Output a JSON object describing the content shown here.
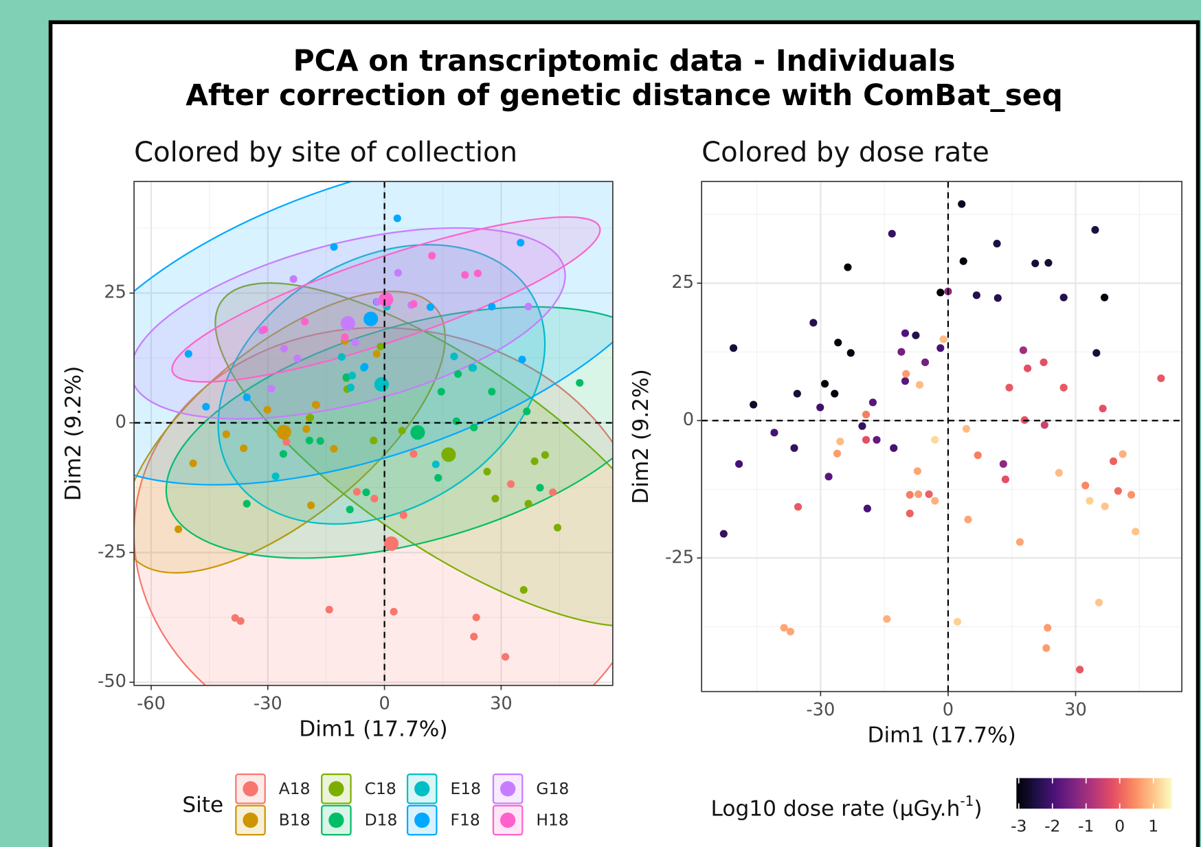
{
  "title_lines": [
    "PCA on transcriptomic data - Individuals",
    "After correction of genetic distance with ComBat_seq"
  ],
  "chart_data": [
    {
      "type": "scatter",
      "title": "Colored by site of collection",
      "xlabel": "Dim1 (17.7%)",
      "ylabel": "Dim2 (9.2%)",
      "xlim": [
        -64.4,
        58.7
      ],
      "ylim": [
        -50.6,
        46.5
      ],
      "xticks": [
        -60,
        -30,
        0,
        30
      ],
      "yticks": [
        -50,
        -25,
        0,
        25
      ],
      "grid": true,
      "hline": 0,
      "vline": 0,
      "ellipses": true,
      "legend_title": "Site",
      "series": [
        {
          "name": "A18",
          "color": "#F8766D",
          "x": [
            32.5,
            43.3,
            4.9,
            -14.2,
            2.4,
            23.6,
            23.0,
            31.1,
            -38.4,
            -37.0,
            -7.1,
            -2.6,
            7.5,
            -25.2,
            -17.5
          ],
          "y": [
            -11.8,
            -13.4,
            -17.8,
            -36.0,
            -36.4,
            -37.5,
            -41.2,
            -45.1,
            -37.6,
            -38.2,
            -13.3,
            -14.6,
            -6.0,
            -3.7,
            3.4
          ]
        },
        {
          "name": "B18",
          "color": "#CD9600",
          "x": [
            -53.0,
            -49.2,
            -40.7,
            -36.2,
            -18.9,
            -30.1,
            -20.1,
            -13.0,
            -17.7,
            -10.2,
            -2.0,
            -19.3
          ],
          "y": [
            -20.5,
            -7.8,
            -2.2,
            -4.9,
            -15.9,
            2.5,
            -1.2,
            -5.0,
            3.5,
            15.8,
            13.3,
            0.9
          ]
        },
        {
          "name": "C18",
          "color": "#7CAE00",
          "x": [
            35.8,
            44.5,
            37.0,
            28.5,
            26.4,
            4.5,
            -2.8,
            -9.8,
            -1.0,
            -19.1,
            38.6,
            41.3,
            -9.6
          ],
          "y": [
            -32.2,
            -20.2,
            -15.6,
            -14.6,
            -9.4,
            -1.5,
            -3.4,
            8.6,
            14.7,
            1.0,
            -7.4,
            -6.2,
            6.5
          ]
        },
        {
          "name": "D18",
          "color": "#00BE67",
          "x": [
            50.2,
            36.6,
            27.6,
            18.9,
            14.6,
            22.6,
            18.5,
            23.0,
            13.8,
            40.0,
            -4.7,
            -8.9,
            -35.4,
            -19.3,
            -16.5,
            -9.8,
            -26.0
          ],
          "y": [
            7.7,
            2.2,
            6.0,
            9.4,
            6.0,
            10.6,
            0.3,
            -0.9,
            -10.6,
            -12.5,
            -13.4,
            -16.7,
            -15.6,
            -3.4,
            -3.5,
            8.8,
            -6.0
          ]
        },
        {
          "name": "E18",
          "color": "#00BFC4",
          "x": [
            17.9,
            22.8,
            -5.3,
            -11.0,
            13.2,
            -28.0,
            -8.7,
            -8.3,
            0.6
          ],
          "y": [
            12.8,
            10.6,
            10.6,
            12.7,
            -8.0,
            -10.3,
            6.8,
            9.1,
            22.4
          ]
        },
        {
          "name": "F18",
          "color": "#00A9FF",
          "x": [
            3.3,
            -13.0,
            -50.4,
            -45.9,
            -35.4,
            35.0,
            27.6,
            35.4,
            11.8,
            -5.1,
            -2.0
          ],
          "y": [
            39.4,
            33.9,
            13.3,
            3.1,
            4.9,
            34.7,
            22.4,
            12.2,
            22.3,
            10.8,
            23.3
          ]
        },
        {
          "name": "G18",
          "color": "#C77CFF",
          "x": [
            -23.4,
            -31.5,
            -25.8,
            -22.4,
            -29.1,
            3.5,
            6.9,
            37.0,
            -1.8,
            -7.5
          ],
          "y": [
            27.7,
            17.8,
            14.3,
            12.4,
            6.6,
            28.9,
            22.7,
            22.4,
            23.3,
            15.5
          ]
        },
        {
          "name": "H18",
          "color": "#FF61CC",
          "x": [
            12.2,
            20.7,
            24.0,
            7.5,
            -10.2,
            -30.9,
            -20.5
          ],
          "y": [
            32.2,
            28.5,
            28.8,
            22.9,
            16.5,
            18.0,
            19.5
          ]
        }
      ]
    },
    {
      "type": "scatter",
      "title": "Colored by dose rate",
      "xlabel": "Dim1 (17.7%)",
      "ylabel": "Dim2 (9.2%)",
      "xlim": [
        -58,
        55
      ],
      "ylim": [
        -49.3,
        43.5
      ],
      "xticks": [
        -30,
        0,
        30
      ],
      "yticks": [
        -25,
        0,
        25
      ],
      "grid": true,
      "hline": 0,
      "vline": 0,
      "x": [
        3.2,
        34.6,
        11.5,
        -13.2,
        -23.6,
        3.6,
        20.5,
        23.6,
        -1.8,
        0,
        6.7,
        11.7,
        27.2,
        36.8,
        -31.7,
        -25.9,
        -22.9,
        -50.5,
        -10.1,
        -7.6,
        -1.8,
        -1.1,
        -11.0,
        -5.4,
        -10.1,
        -6.7,
        -9.9,
        -29.0,
        -26.7,
        -35.5,
        -45.8,
        -30.1,
        -17.7,
        -20.2,
        -19.3,
        -40.9,
        -36.2,
        -49.2,
        -19.3,
        -16.8,
        -25.4,
        -26.1,
        -12.8,
        -28.1,
        -19.0,
        -35.3,
        -52.8,
        -9.0,
        -7.0,
        -4.5,
        -3.1,
        -9.0,
        -7.2,
        -3.1,
        4.3,
        7.0,
        4.7,
        13.0,
        13.5,
        18.0,
        22.7,
        14.4,
        27.2,
        36.4,
        18.7,
        22.5,
        17.7,
        34.9,
        50.1,
        38.9,
        41.1,
        26.1,
        32.3,
        40.0,
        43.1,
        33.3,
        36.9,
        44.1,
        16.9,
        -14.4,
        -38.6,
        -37.1,
        2.2,
        23.4,
        23.1,
        31.0,
        35.5
      ],
      "y": [
        39.4,
        34.7,
        32.2,
        34.0,
        27.9,
        29.0,
        28.6,
        28.7,
        23.3,
        23.5,
        22.8,
        22.3,
        22.4,
        22.4,
        17.8,
        14.2,
        12.3,
        13.2,
        15.9,
        15.5,
        13.2,
        14.8,
        12.5,
        10.6,
        7.2,
        6.5,
        8.5,
        6.7,
        4.9,
        4.9,
        2.9,
        2.4,
        3.3,
        -1.0,
        1.1,
        -2.2,
        -5.0,
        -7.9,
        -3.5,
        -3.5,
        -3.8,
        -6.0,
        -5.0,
        -10.2,
        -16.0,
        -15.7,
        -20.6,
        -13.5,
        -13.4,
        -13.4,
        -14.6,
        -16.9,
        -9.2,
        -3.5,
        -1.5,
        -6.3,
        -18.0,
        -7.9,
        -10.7,
        0.1,
        -0.8,
        6.0,
        6.0,
        2.2,
        9.5,
        10.6,
        12.8,
        12.3,
        7.7,
        -7.4,
        -6.1,
        -9.5,
        -11.8,
        -12.8,
        -13.5,
        -14.6,
        -15.6,
        -20.2,
        -22.1,
        -36.1,
        -37.7,
        -38.4,
        -36.6,
        -37.7,
        -41.4,
        -45.3,
        -33.1
      ],
      "values": [
        -2.8,
        -2.5,
        -2.5,
        -2.2,
        -3,
        -3,
        -2.6,
        -2.6,
        -3,
        -1.2,
        -2.4,
        -2.4,
        -2.4,
        -3,
        -2.4,
        -3,
        -3,
        -2.6,
        -1.9,
        -2.4,
        -2.0,
        0.9,
        -1.5,
        -1.5,
        -1.8,
        0.9,
        0.6,
        -3,
        -3,
        -2.6,
        -2.7,
        -2.1,
        -1.8,
        -2.2,
        0.3,
        -2.0,
        -2.2,
        -2.0,
        -0.2,
        -1.7,
        0.9,
        0.6,
        -2.0,
        -1.8,
        -2.0,
        -0.1,
        -2.2,
        0.3,
        0.6,
        0.0,
        0.8,
        0.0,
        0.7,
        1.2,
        0.9,
        0.3,
        0.7,
        -1.2,
        -0.2,
        -0.2,
        -0.5,
        -0.1,
        -0.1,
        -0.2,
        -0.2,
        -0.2,
        -1.0,
        -2.6,
        -0.1,
        0.0,
        0.8,
        0.9,
        0.4,
        0.1,
        0.5,
        1.1,
        1.0,
        1.0,
        0.7,
        0.8,
        0.7,
        0.7,
        1.1,
        0.6,
        0.6,
        -0.1,
        1.0
      ],
      "colorbar": {
        "title": "Log10 dose rate (µGy.h",
        "title_superscript": "-1",
        "title_end": ")",
        "lim": [
          -3.07,
          1.55
        ],
        "ticks": [
          -3,
          -2,
          -1,
          0,
          1
        ],
        "colors": [
          "#000004",
          "#1c1044",
          "#4f127b",
          "#812581",
          "#b5367a",
          "#e55064",
          "#fb8761",
          "#fec287",
          "#fcfdbf"
        ]
      }
    }
  ]
}
